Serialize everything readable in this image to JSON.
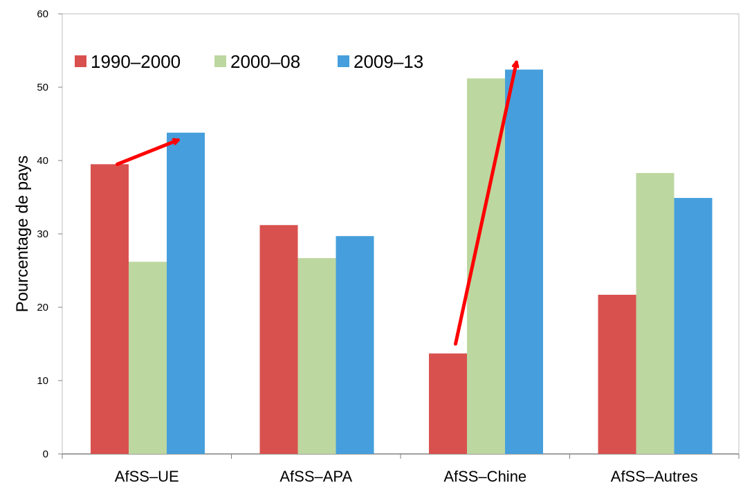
{
  "chart_data": {
    "type": "bar",
    "title": "",
    "xlabel": "",
    "ylabel": "Pourcentage de pays",
    "ylim": [
      0,
      60
    ],
    "yticks": [
      0,
      10,
      20,
      30,
      40,
      50,
      60
    ],
    "categories": [
      "AfSS–UE",
      "AfSS–APA",
      "AfSS–Chine",
      "AfSS–Autres"
    ],
    "series": [
      {
        "name": "1990–2000",
        "color": "#d9514e",
        "values": [
          39.5,
          31.2,
          13.7,
          21.7
        ]
      },
      {
        "name": "2000–08",
        "color": "#bdd7a0",
        "values": [
          26.2,
          26.7,
          51.2,
          38.3
        ]
      },
      {
        "name": "2009–13",
        "color": "#469fdc",
        "values": [
          43.8,
          29.7,
          52.4,
          34.9
        ]
      }
    ],
    "legend_position": "top-left",
    "grid": false,
    "annotations": [
      {
        "type": "arrow",
        "color": "#ff0000",
        "from": {
          "category": "AfSS–UE",
          "series": "1990–2000",
          "y": 39.5
        },
        "to": {
          "category": "AfSS–UE",
          "series": "2009–13",
          "y": 42.8
        }
      },
      {
        "type": "arrow",
        "color": "#ff0000",
        "from": {
          "category": "AfSS–Chine",
          "series": "1990–2000",
          "y": 15
        },
        "to": {
          "category": "AfSS–Chine",
          "series": "2009–13",
          "y": 53.4
        }
      }
    ]
  }
}
